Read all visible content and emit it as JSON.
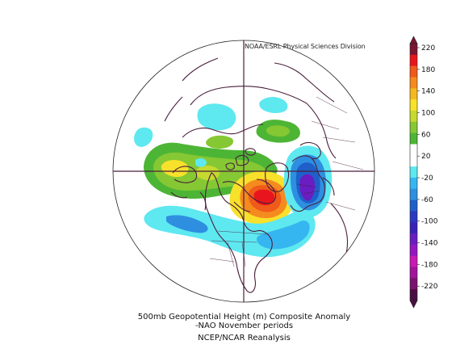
{
  "credit": "NOAA/ESRL Physical Sciences Division",
  "caption": {
    "line1": "500mb Geopotential Height (m) Composite Anomaly",
    "line2": "-NAO November periods",
    "line3": "NCEP/NCAR Reanalysis"
  },
  "colorbar": {
    "labels": [
      "220",
      "180",
      "140",
      "100",
      "60",
      "20",
      "-20",
      "-60",
      "-100",
      "-140",
      "-180",
      "-220"
    ],
    "colors": [
      "#7a1530",
      "#e8161c",
      "#f05a1a",
      "#f58b1e",
      "#f4b820",
      "#f8e12b",
      "#c5d92f",
      "#85c833",
      "#4db535",
      "#ffffff",
      "#ffffff",
      "#5ee8f0",
      "#36b6f0",
      "#2e8fe0",
      "#1f5fca",
      "#2a3ac0",
      "#3a22b8",
      "#6a1dc0",
      "#9318c0",
      "#c81ab4",
      "#a2149a",
      "#7a1270",
      "#4a0f42"
    ]
  },
  "anomaly_colors": {
    "strong_positive": "#e8161c",
    "positive": "#f58b1e",
    "weak_positive": "#f8e12b",
    "green": "#4db535",
    "light_green": "#85c833",
    "light_blue": "#5ee8f0",
    "blue": "#2e8fe0",
    "purple": "#6a1dc0"
  }
}
